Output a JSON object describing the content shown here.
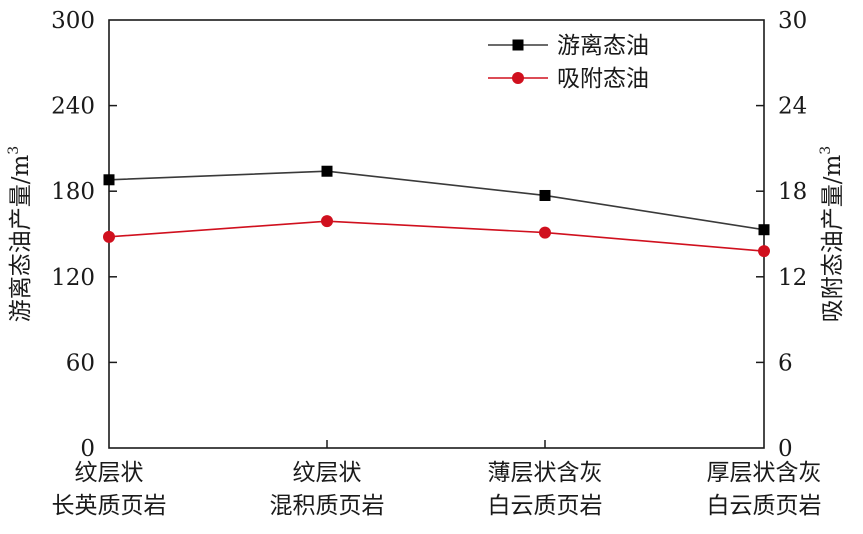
{
  "chart_data": {
    "type": "line",
    "categories": [
      [
        "纹层状",
        "长英质页岩"
      ],
      [
        "纹层状",
        "混积质页岩"
      ],
      [
        "薄层状含灰",
        "白云质页岩"
      ],
      [
        "厚层状含灰",
        "白云质页岩"
      ]
    ],
    "series": [
      {
        "name": "游离态油",
        "axis": "left",
        "color": "#3a3a3a",
        "marker": "square",
        "values": [
          188,
          194,
          177,
          153
        ]
      },
      {
        "name": "吸附态油",
        "axis": "right",
        "color": "#d0101e",
        "marker": "circle",
        "values": [
          14.8,
          15.9,
          15.1,
          13.8
        ]
      }
    ],
    "y_left": {
      "label_text": "游离态油产量/m",
      "label_sup": "3",
      "ylim": [
        0,
        300
      ],
      "ticks": [
        "0",
        "60",
        "120",
        "180",
        "240",
        "300"
      ]
    },
    "y_right": {
      "label_text": "吸附态油产量/m",
      "label_sup": "3",
      "ylim": [
        0,
        30
      ],
      "ticks": [
        "0",
        "6",
        "12",
        "18",
        "24",
        "30"
      ]
    },
    "legend": "top-right",
    "grid": false
  }
}
